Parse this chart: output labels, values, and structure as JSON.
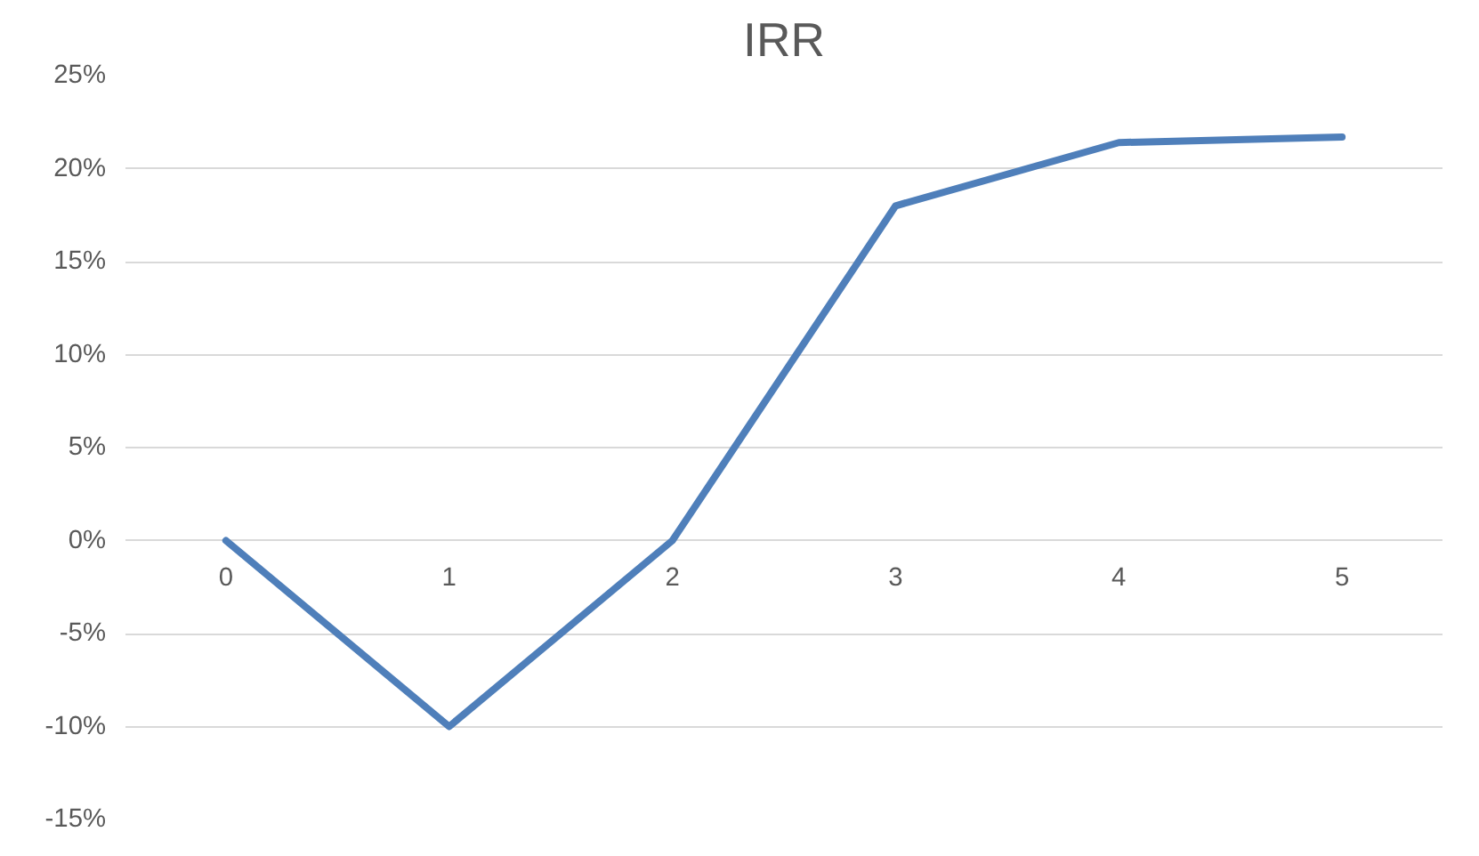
{
  "chart_data": {
    "type": "line",
    "title": "IRR",
    "categories": [
      "0",
      "1",
      "2",
      "3",
      "4",
      "5"
    ],
    "series": [
      {
        "color": "#4f7fba",
        "values": [
          0,
          -10,
          0,
          18,
          21.4,
          21.7
        ]
      }
    ],
    "ylim": [
      -15,
      25
    ],
    "yticks": [
      {
        "value": -15,
        "label": "-15%"
      },
      {
        "value": -10,
        "label": "-10%"
      },
      {
        "value": -5,
        "label": "-5%"
      },
      {
        "value": 0,
        "label": "0%"
      },
      {
        "value": 5,
        "label": "5%"
      },
      {
        "value": 10,
        "label": "10%"
      },
      {
        "value": 15,
        "label": "15%"
      },
      {
        "value": 20,
        "label": "20%"
      },
      {
        "value": 25,
        "label": "25%"
      }
    ],
    "grid": "y",
    "marker": "none",
    "line_style": "solid"
  }
}
